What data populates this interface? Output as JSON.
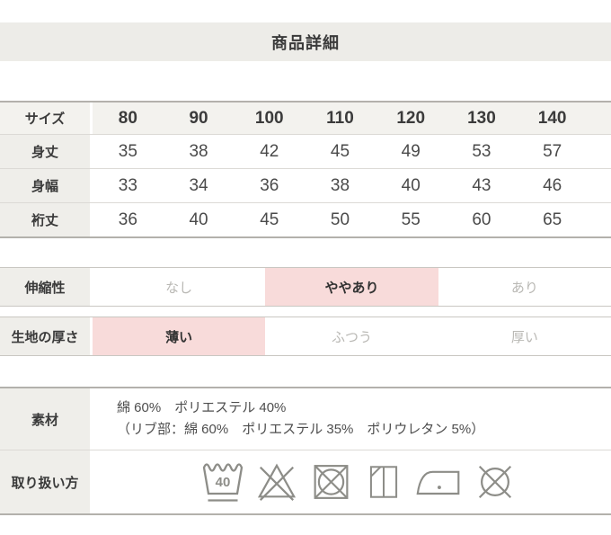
{
  "title": "商品詳細",
  "size_table": {
    "header_label": "サイズ",
    "sizes": [
      "80",
      "90",
      "100",
      "110",
      "120",
      "130",
      "140"
    ],
    "rows": [
      {
        "label": "身丈",
        "values": [
          "35",
          "38",
          "42",
          "45",
          "49",
          "53",
          "57"
        ]
      },
      {
        "label": "身幅",
        "values": [
          "33",
          "34",
          "36",
          "38",
          "40",
          "43",
          "46"
        ]
      },
      {
        "label": "裄丈",
        "values": [
          "36",
          "40",
          "45",
          "50",
          "55",
          "60",
          "65"
        ]
      }
    ]
  },
  "attributes": [
    {
      "label": "伸縮性",
      "options": [
        {
          "text": "なし",
          "selected": false
        },
        {
          "text": "ややあり",
          "selected": true
        },
        {
          "text": "あり",
          "selected": false
        }
      ]
    },
    {
      "label": "生地の厚さ",
      "options": [
        {
          "text": "薄い",
          "selected": true
        },
        {
          "text": "ふつう",
          "selected": false
        },
        {
          "text": "厚い",
          "selected": false
        }
      ]
    }
  ],
  "material": {
    "label": "素材",
    "line1": "綿 60%　ポリエステル 40%",
    "line2": "（リブ部：綿 60%　ポリエステル 35%　ポリウレタン 5%）"
  },
  "care": {
    "label": "取り扱い方",
    "wash_temp": "40",
    "icons": [
      "wash-40-gentle-icon",
      "do-not-bleach-icon",
      "do-not-tumble-dry-icon",
      "line-dry-in-shade-icon",
      "iron-low-heat-icon",
      "do-not-dry-clean-icon"
    ]
  },
  "colors": {
    "highlight_pink": "#f8dbda",
    "band_gray": "#edece8",
    "label_gray": "#efeeea",
    "header_gray": "#f3f2ee",
    "border_strong": "#b3b1ac",
    "border_light": "#dcdad6",
    "text_dark": "#3a3a3a",
    "text_muted": "#b9b8b4",
    "icon_stroke": "#8d8d88"
  }
}
